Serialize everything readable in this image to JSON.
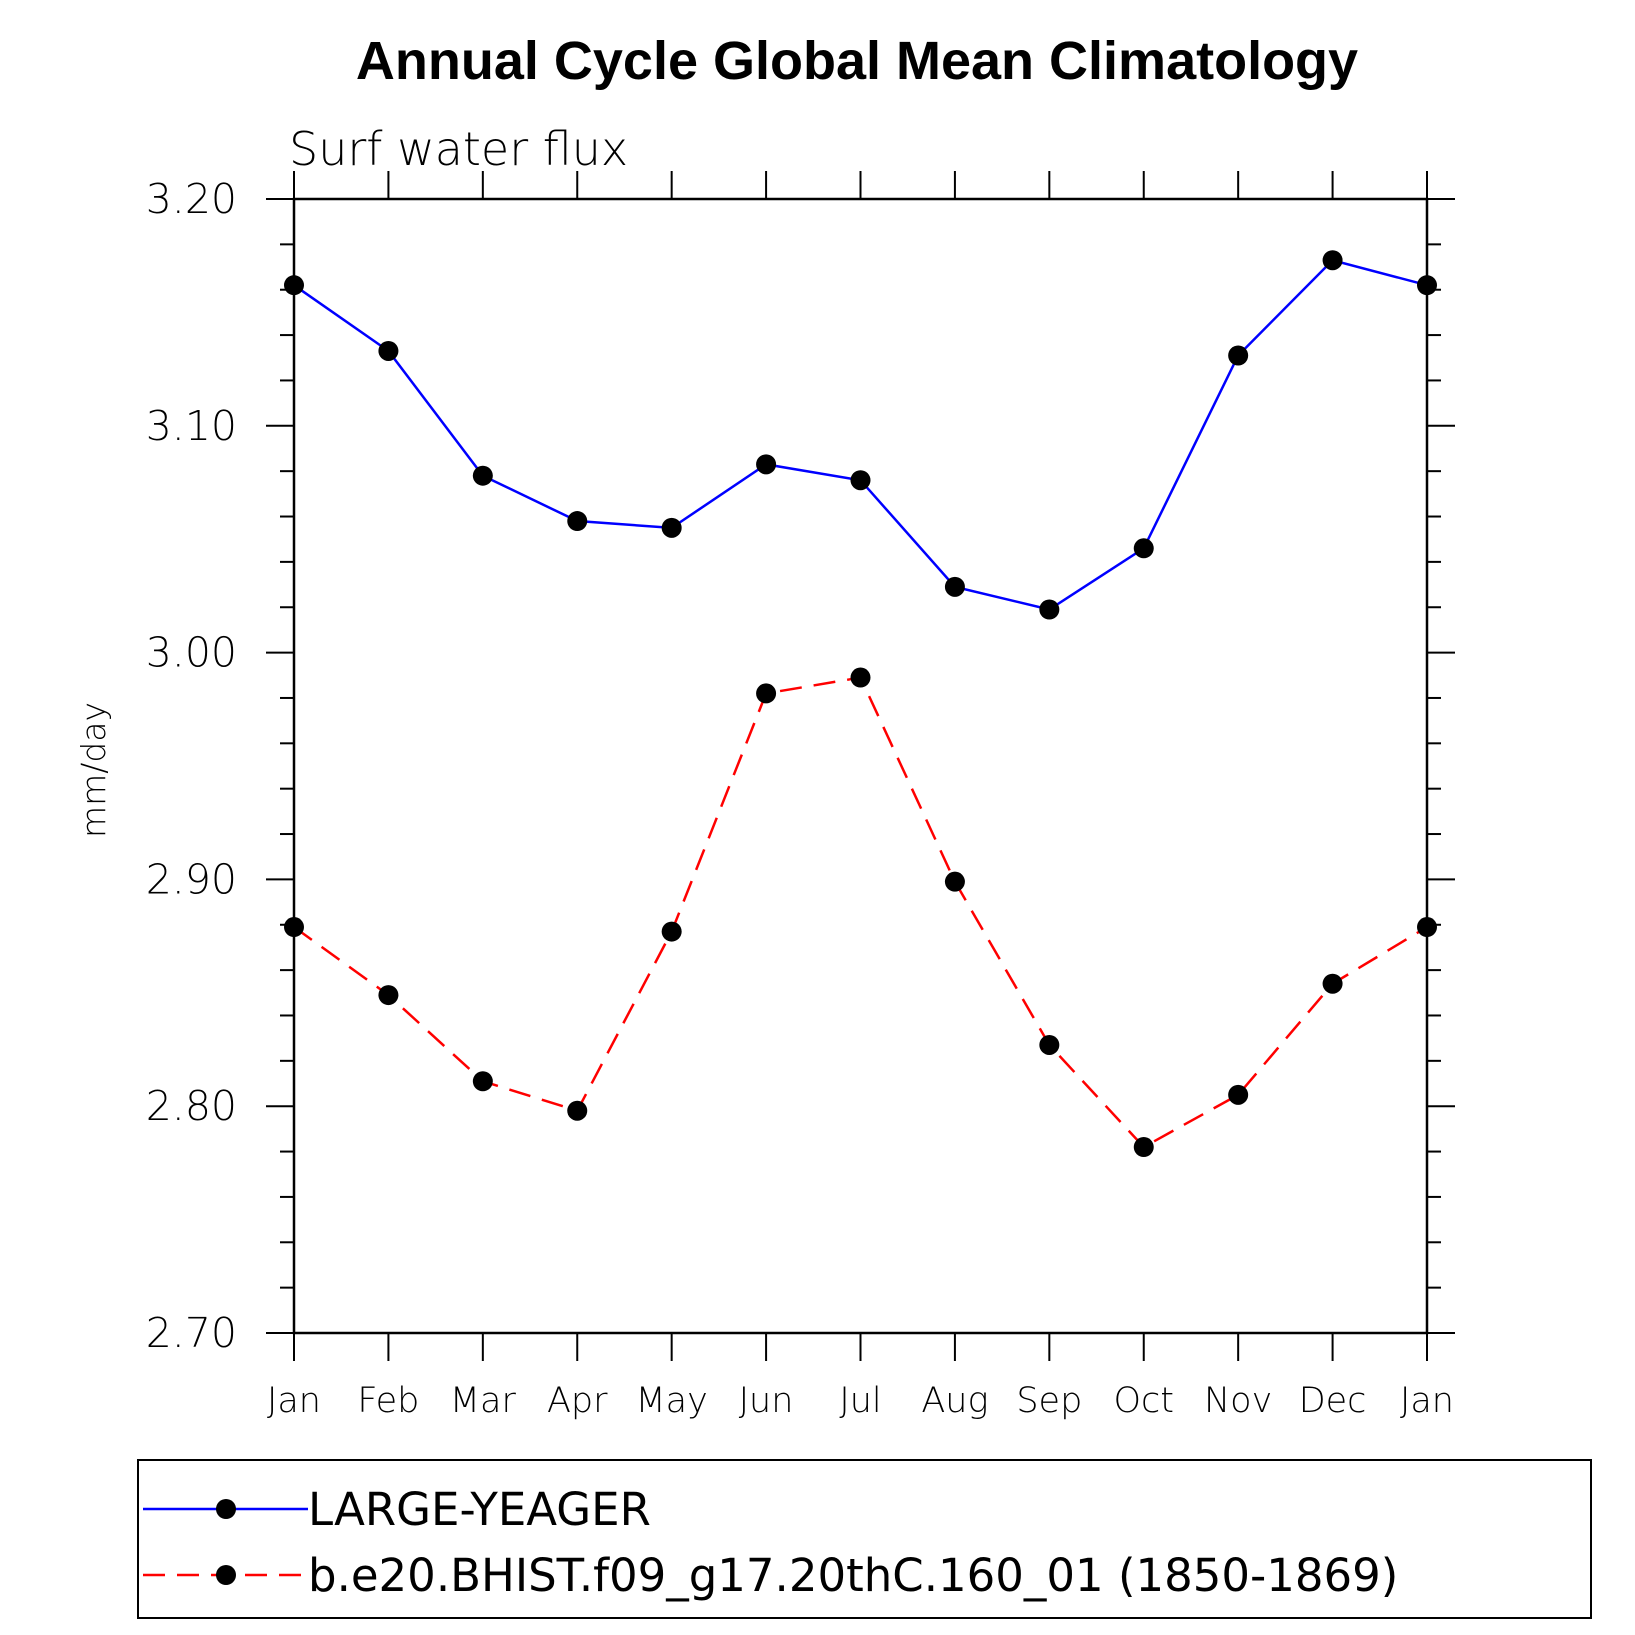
{
  "chart_data": {
    "type": "line",
    "title": "Annual Cycle Global Mean Climatology",
    "subtitle": "Surf water flux",
    "ylabel": "mm/day",
    "xlabel": "",
    "categories": [
      "Jan",
      "Feb",
      "Mar",
      "Apr",
      "May",
      "Jun",
      "Jul",
      "Aug",
      "Sep",
      "Oct",
      "Nov",
      "Dec",
      "Jan"
    ],
    "ylim": [
      2.7,
      3.2
    ],
    "yticks": [
      "2.70",
      "2.80",
      "2.90",
      "3.00",
      "3.10",
      "3.20"
    ],
    "legend_position": "bottom",
    "series": [
      {
        "name": "LARGE-YEAGER",
        "color": "#0000ff",
        "style": "solid",
        "marker": "filled-circle",
        "values": [
          3.162,
          3.133,
          3.078,
          3.058,
          3.055,
          3.083,
          3.076,
          3.029,
          3.019,
          3.046,
          3.131,
          3.173,
          3.162
        ]
      },
      {
        "name": "b.e20.BHIST.f09_g17.20thC.160_01 (1850-1869)",
        "color": "#ff0000",
        "style": "dashed",
        "marker": "filled-circle",
        "values": [
          2.879,
          2.849,
          2.811,
          2.798,
          2.877,
          2.982,
          2.989,
          2.899,
          2.827,
          2.782,
          2.805,
          2.854,
          2.879
        ]
      }
    ]
  }
}
